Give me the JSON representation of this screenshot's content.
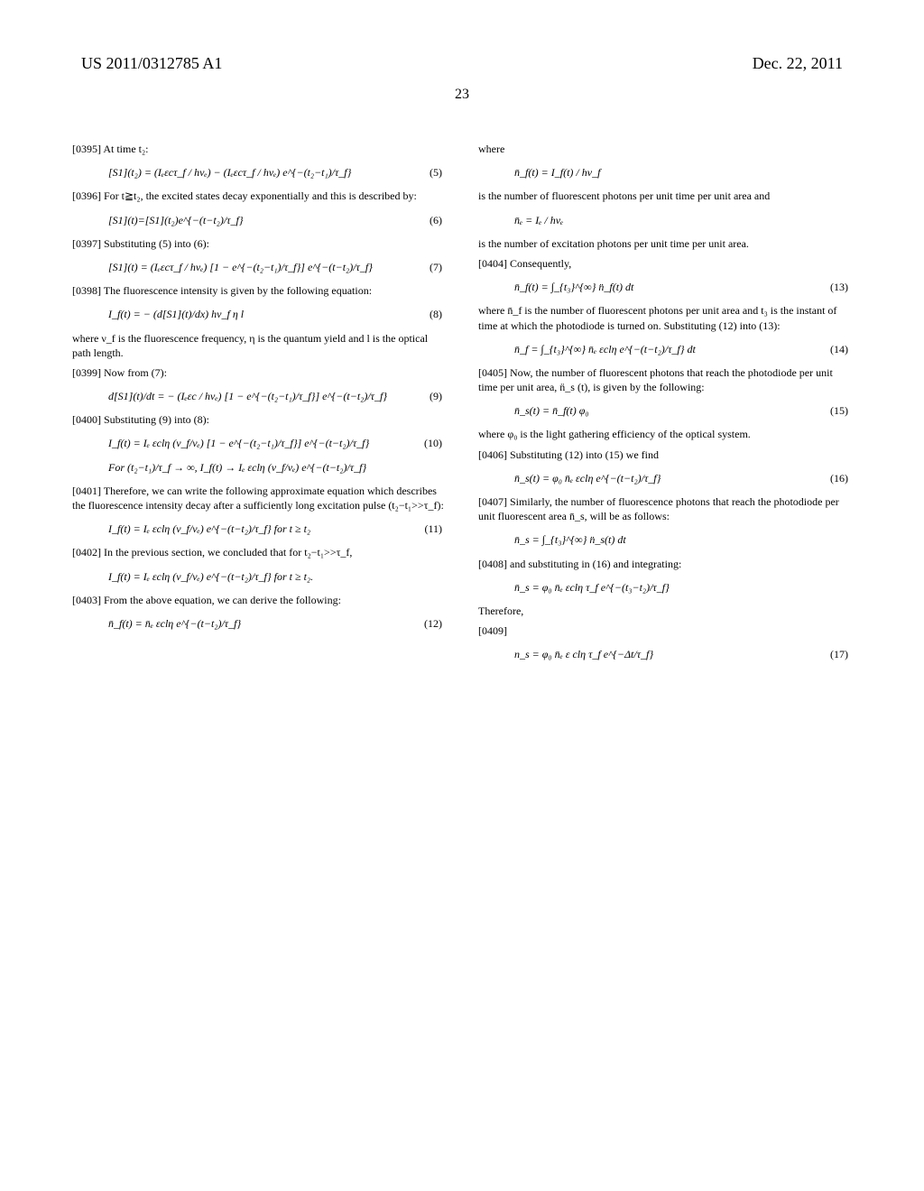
{
  "header": {
    "pubnum": "US 2011/0312785 A1",
    "date": "Dec. 22, 2011",
    "pagenum": "23"
  },
  "left": {
    "p0395": "[0395]   At time t₂:",
    "eq5": "[S1](t₂) = (Iₑεcτ_f / hνₑ) − (Iₑεcτ_f / hνₑ) e^{−(t₂−t₁)/τ_f}",
    "eq5_num": "(5)",
    "p0396": "[0396]   For t≧t₂, the excited states decay exponentially and this is described by:",
    "eq6": "[S1](t)=[S1](t₂)e^{−(t−t₂)/τ_f}",
    "eq6_num": "(6)",
    "p0397": "[0397]   Substituting (5) into (6):",
    "eq7": "[S1](t) = (Iₑεcτ_f / hνₑ) [1 − e^{−(t₂−t₁)/τ_f}] e^{−(t−t₂)/τ_f}",
    "eq7_num": "(7)",
    "p0398": "[0398]   The fluorescence intensity is given by the following equation:",
    "eq8": "I_f(t) = − (d[S1](t)/dx) hν_f η l",
    "eq8_num": "(8)",
    "p_after8": "where ν_f is the fluorescence frequency, η is the quantum yield and l is the optical path length.",
    "p0399": "[0399]   Now from (7):",
    "eq9": "d[S1](t)/dt = − (Iₑεc / hνₑ) [1 − e^{−(t₂−t₁)/τ_f}] e^{−(t−t₂)/τ_f}",
    "eq9_num": "(9)",
    "p0400": "[0400]   Substituting (9) into (8):",
    "eq10a": "I_f(t) = Iₑ εclη (ν_f/νₑ) [1 − e^{−(t₂−t₁)/τ_f}] e^{−(t−t₂)/τ_f}",
    "eq10_num": "(10)",
    "eq10b": "For (t₂−t₁)/τ_f → ∞,  I_f(t) → Iₑ εclη (ν_f/νₑ) e^{−(t−t₂)/τ_f}",
    "p0401": "[0401]   Therefore, we can write the following approximate equation which describes the fluorescence intensity decay after a sufficiently long excitation pulse (t₂−t₁>>τ_f):",
    "eq11": "I_f(t) = Iₑ εclη (ν_f/νₑ) e^{−(t−t₂)/τ_f}   for t ≥ t₂",
    "eq11_num": "(11)",
    "p0402": "[0402]   In the previous section, we concluded that for t₂−t₁>>τ_f,",
    "eq_after402": "I_f(t) = Iₑ εclη (ν_f/νₑ) e^{−(t−t₂)/τ_f}   for t ≥ t₂.",
    "p0403": "[0403]   From the above equation, we can derive the following:",
    "eq12": "n̄_f(t) = n̄ₑ εclη e^{−(t−t₂)/τ_f}",
    "eq12_num": "(12)"
  },
  "right": {
    "where1": "where",
    "eq_nf": "n̄_f(t) = I_f(t) / hν_f",
    "after_nf": "is the number of fluorescent photons per unit time per unit area and",
    "eq_ne": "n̄ₑ = Iₑ / hνₑ",
    "after_ne": "is the number of excitation photons per unit time per unit area.",
    "p0404": "[0404]   Consequently,",
    "eq13": "n̄_f(t) = ∫_{t₃}^{∞} n̈_f(t) dt",
    "eq13_num": "(13)",
    "after13": "where n̄_f is the number of fluorescent photons per unit area and t₃ is the instant of time at which the photodiode is turned on. Substituting (12) into (13):",
    "eq14": "n̄_f = ∫_{t₃}^{∞} n̄ₑ εclη e^{−(t−t₂)/τ_f} dt",
    "eq14_num": "(14)",
    "p0405": "[0405]   Now, the number of fluorescent photons that reach the photodiode per unit time per unit area, n̈_s (t), is given by the following:",
    "eq15": "n̄_s(t) = n̄_f(t) φ₀",
    "eq15_num": "(15)",
    "after15": "where φ₀ is the light gathering efficiency of the optical system.",
    "p0406": "[0406]   Substituting (12) into (15) we find",
    "eq16": "n̄_s(t) = φ₀ n̄ₑ εclη e^{−(t−t₂)/τ_f}",
    "eq16_num": "(16)",
    "p0407": "[0407]   Similarly, the number of fluorescence photons that reach the photodiode per unit fluorescent area n̄_s, will be as follows:",
    "eq_ns_int": "n̄_s = ∫_{t₃}^{∞} n̈_s(t) dt",
    "p0408": "[0408]   and substituting in (16) and integrating:",
    "eq_ns_res": "n̄_s = φ₀ n̄ₑ εclη τ_f e^{−(t₃−t₂)/τ_f}",
    "therefore": "Therefore,",
    "p0409": "[0409]",
    "eq17": "n_s = φ₀ n̄ₑ ε clη τ_f e^{−Δt/τ_f}",
    "eq17_num": "(17)"
  }
}
